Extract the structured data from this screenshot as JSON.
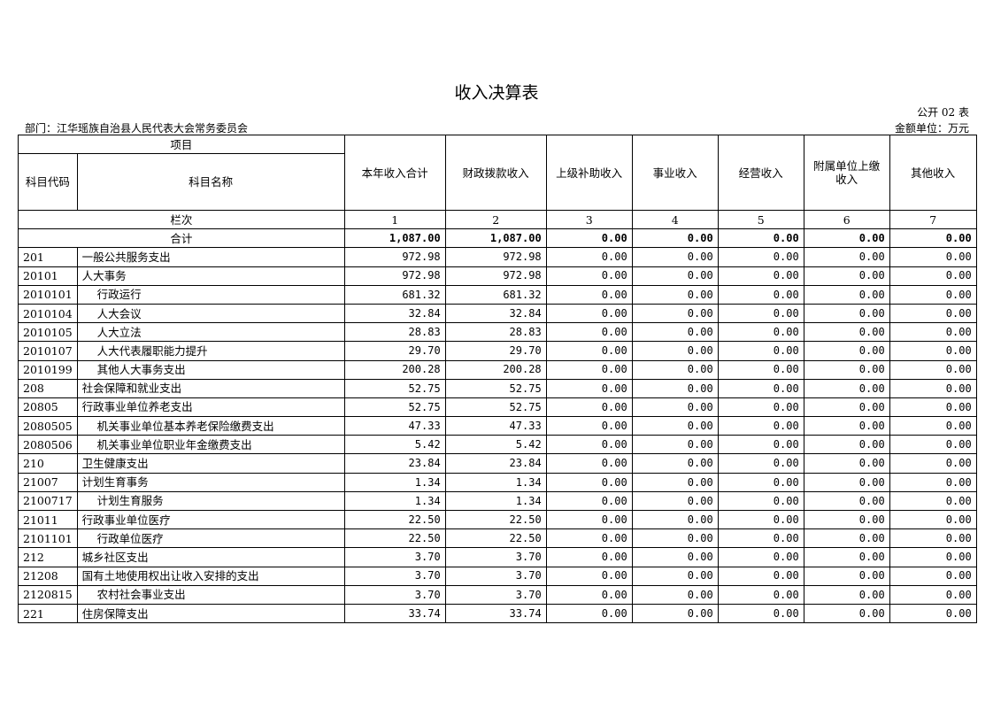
{
  "title": "收入决算表",
  "form_code": "公开 02 表",
  "department": "部门：江华瑶族自治县人民代表大会常务委员会",
  "unit": "金额单位：万元",
  "headers": {
    "item": "项目",
    "subject_code": "科目代码",
    "subject_name": "科目名称",
    "columns": [
      "本年收入合计",
      "财政拨款收入",
      "上级补助收入",
      "事业收入",
      "经营收入",
      "附属单位上缴收入",
      "其他收入"
    ],
    "column_numbers_label": "栏次",
    "column_numbers": [
      "1",
      "2",
      "3",
      "4",
      "5",
      "6",
      "7"
    ]
  },
  "total": {
    "label": "合计",
    "values": [
      "1,087.00",
      "1,087.00",
      "0.00",
      "0.00",
      "0.00",
      "0.00",
      "0.00"
    ]
  },
  "rows": [
    {
      "code": "201",
      "name": "一般公共服务支出",
      "level": 1,
      "values": [
        "972.98",
        "972.98",
        "0.00",
        "0.00",
        "0.00",
        "0.00",
        "0.00"
      ]
    },
    {
      "code": "20101",
      "name": "人大事务",
      "level": 1,
      "values": [
        "972.98",
        "972.98",
        "0.00",
        "0.00",
        "0.00",
        "0.00",
        "0.00"
      ]
    },
    {
      "code": "2010101",
      "name": "行政运行",
      "level": 2,
      "values": [
        "681.32",
        "681.32",
        "0.00",
        "0.00",
        "0.00",
        "0.00",
        "0.00"
      ]
    },
    {
      "code": "2010104",
      "name": "人大会议",
      "level": 2,
      "values": [
        "32.84",
        "32.84",
        "0.00",
        "0.00",
        "0.00",
        "0.00",
        "0.00"
      ]
    },
    {
      "code": "2010105",
      "name": "人大立法",
      "level": 2,
      "values": [
        "28.83",
        "28.83",
        "0.00",
        "0.00",
        "0.00",
        "0.00",
        "0.00"
      ]
    },
    {
      "code": "2010107",
      "name": "人大代表履职能力提升",
      "level": 2,
      "values": [
        "29.70",
        "29.70",
        "0.00",
        "0.00",
        "0.00",
        "0.00",
        "0.00"
      ]
    },
    {
      "code": "2010199",
      "name": "其他人大事务支出",
      "level": 2,
      "values": [
        "200.28",
        "200.28",
        "0.00",
        "0.00",
        "0.00",
        "0.00",
        "0.00"
      ]
    },
    {
      "code": "208",
      "name": "社会保障和就业支出",
      "level": 1,
      "values": [
        "52.75",
        "52.75",
        "0.00",
        "0.00",
        "0.00",
        "0.00",
        "0.00"
      ]
    },
    {
      "code": "20805",
      "name": "行政事业单位养老支出",
      "level": 1,
      "values": [
        "52.75",
        "52.75",
        "0.00",
        "0.00",
        "0.00",
        "0.00",
        "0.00"
      ]
    },
    {
      "code": "2080505",
      "name": "机关事业单位基本养老保险缴费支出",
      "level": 2,
      "values": [
        "47.33",
        "47.33",
        "0.00",
        "0.00",
        "0.00",
        "0.00",
        "0.00"
      ]
    },
    {
      "code": "2080506",
      "name": "机关事业单位职业年金缴费支出",
      "level": 2,
      "values": [
        "5.42",
        "5.42",
        "0.00",
        "0.00",
        "0.00",
        "0.00",
        "0.00"
      ]
    },
    {
      "code": "210",
      "name": "卫生健康支出",
      "level": 1,
      "values": [
        "23.84",
        "23.84",
        "0.00",
        "0.00",
        "0.00",
        "0.00",
        "0.00"
      ]
    },
    {
      "code": "21007",
      "name": "计划生育事务",
      "level": 1,
      "values": [
        "1.34",
        "1.34",
        "0.00",
        "0.00",
        "0.00",
        "0.00",
        "0.00"
      ]
    },
    {
      "code": "2100717",
      "name": "计划生育服务",
      "level": 2,
      "values": [
        "1.34",
        "1.34",
        "0.00",
        "0.00",
        "0.00",
        "0.00",
        "0.00"
      ]
    },
    {
      "code": "21011",
      "name": "行政事业单位医疗",
      "level": 1,
      "values": [
        "22.50",
        "22.50",
        "0.00",
        "0.00",
        "0.00",
        "0.00",
        "0.00"
      ]
    },
    {
      "code": "2101101",
      "name": "行政单位医疗",
      "level": 2,
      "values": [
        "22.50",
        "22.50",
        "0.00",
        "0.00",
        "0.00",
        "0.00",
        "0.00"
      ]
    },
    {
      "code": "212",
      "name": "城乡社区支出",
      "level": 1,
      "values": [
        "3.70",
        "3.70",
        "0.00",
        "0.00",
        "0.00",
        "0.00",
        "0.00"
      ]
    },
    {
      "code": "21208",
      "name": "国有土地使用权出让收入安排的支出",
      "level": 1,
      "values": [
        "3.70",
        "3.70",
        "0.00",
        "0.00",
        "0.00",
        "0.00",
        "0.00"
      ]
    },
    {
      "code": "2120815",
      "name": "农村社会事业支出",
      "level": 2,
      "values": [
        "3.70",
        "3.70",
        "0.00",
        "0.00",
        "0.00",
        "0.00",
        "0.00"
      ]
    },
    {
      "code": "221",
      "name": "住房保障支出",
      "level": 1,
      "values": [
        "33.74",
        "33.74",
        "0.00",
        "0.00",
        "0.00",
        "0.00",
        "0.00"
      ]
    }
  ]
}
